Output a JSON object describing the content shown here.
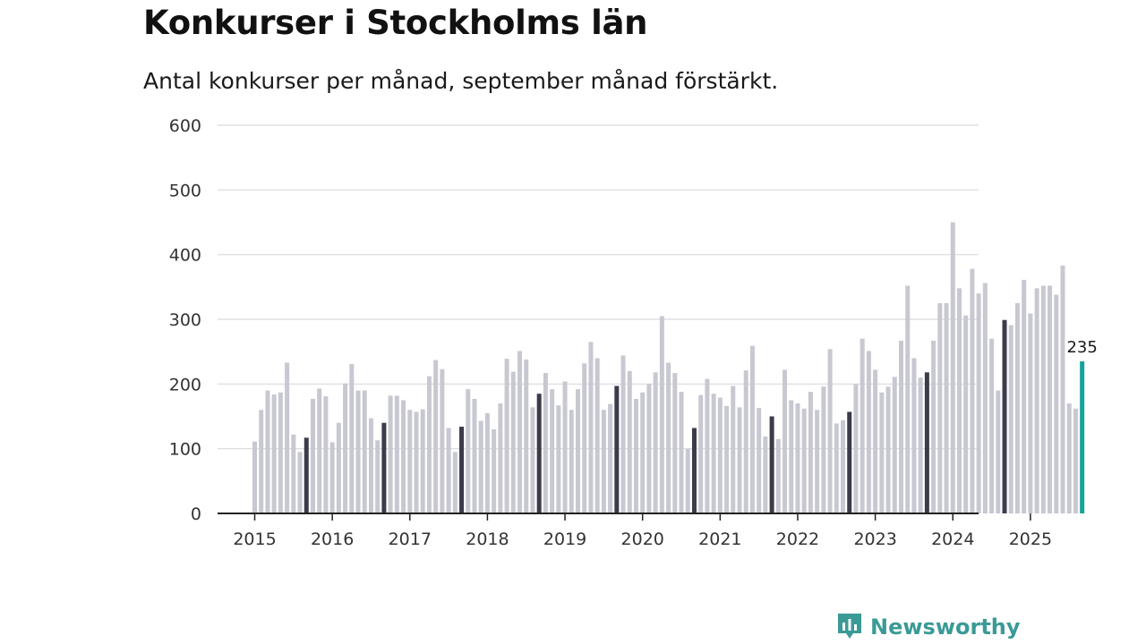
{
  "chart_data": {
    "type": "bar",
    "title": "Konkurser i Stockholms län",
    "subtitle": "Antal konkurser per månad, september månad förstärkt.",
    "xlabel": "",
    "ylabel": "",
    "ylim": [
      0,
      600
    ],
    "y_ticks": [
      0,
      100,
      200,
      300,
      400,
      500,
      600
    ],
    "x_tick_labels": [
      "2015",
      "2016",
      "2017",
      "2018",
      "2019",
      "2020",
      "2021",
      "2022",
      "2023",
      "2024",
      "2025"
    ],
    "start_year": 2015,
    "highlight_month": "september",
    "latest_value_label": "235",
    "series": [
      {
        "year": "2015",
        "values": [
          111,
          160,
          190,
          184,
          187,
          233,
          122,
          95,
          117,
          177,
          193,
          181
        ]
      },
      {
        "year": "2016",
        "values": [
          110,
          140,
          201,
          231,
          190,
          190,
          147,
          113,
          140,
          182,
          182,
          175
        ]
      },
      {
        "year": "2017",
        "values": [
          160,
          157,
          161,
          212,
          237,
          223,
          132,
          95,
          134,
          192,
          177,
          143
        ]
      },
      {
        "year": "2018",
        "values": [
          155,
          130,
          170,
          239,
          219,
          251,
          238,
          164,
          185,
          217,
          192,
          167
        ]
      },
      {
        "year": "2019",
        "values": [
          204,
          160,
          192,
          232,
          265,
          240,
          160,
          169,
          197,
          244,
          220,
          177
        ]
      },
      {
        "year": "2020",
        "values": [
          187,
          200,
          218,
          305,
          233,
          217,
          188,
          100,
          132,
          183,
          208,
          185
        ]
      },
      {
        "year": "2021",
        "values": [
          179,
          166,
          197,
          164,
          221,
          259,
          163,
          119,
          150,
          115,
          222,
          175
        ]
      },
      {
        "year": "2022",
        "values": [
          170,
          162,
          188,
          160,
          196,
          254,
          139,
          144,
          157,
          200,
          270,
          251
        ]
      },
      {
        "year": "2023",
        "values": [
          222,
          187,
          196,
          211,
          267,
          352,
          240,
          210,
          218,
          267,
          325,
          325
        ]
      },
      {
        "year": "2024",
        "values": [
          450,
          348,
          306,
          378,
          340,
          356,
          270,
          190,
          299,
          291,
          325,
          361
        ]
      },
      {
        "year": "2025",
        "values": [
          309,
          348,
          352,
          352,
          338,
          383,
          170,
          162,
          235
        ]
      }
    ],
    "colors": {
      "bar": "#c8c8d2",
      "september": "#3b3b4a",
      "latest": "#14a39a",
      "grid": "#d9d9de",
      "axis": "#222222"
    }
  },
  "brand": {
    "name": "Newsworthy",
    "icon": "newsworthy-logo-icon",
    "color": "#3a9a96"
  }
}
